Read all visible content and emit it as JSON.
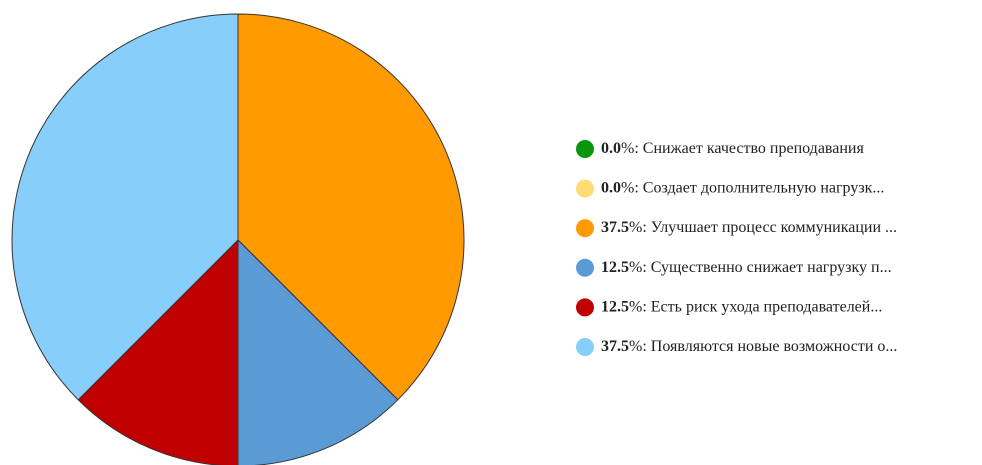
{
  "chart_data": {
    "type": "pie",
    "categories": [
      "Снижает качество преподавания",
      "Создает дополнительную нагрузк...",
      "Улучшает процесс коммуникации ...",
      "Существенно снижает нагрузку п...",
      "Есть риск ухода преподавателей...",
      "Появляются новые возможности о..."
    ],
    "values": [
      0,
      0,
      37.5,
      12.5,
      12.5,
      37.5
    ],
    "value_labels": [
      "0.0",
      "0.0",
      "37.5",
      "12.5",
      "12.5",
      "37.5"
    ],
    "value_suffix": "%:",
    "colors": [
      "#0a960a",
      "#fedb74",
      "#ff9a00",
      "#5b9bd5",
      "#c00000",
      "#87cefa"
    ],
    "legend": "right"
  }
}
